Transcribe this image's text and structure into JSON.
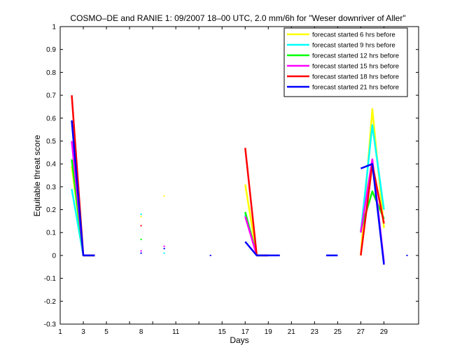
{
  "chart_data": {
    "type": "line",
    "title": "COSMO–DE and RANIE 1: 09/2007 18–00 UTC, 2.0 mm/6h for \"Weser downriver of Aller\"",
    "xlabel": "Days",
    "ylabel": "Equitable threat score",
    "xlim": [
      1,
      32
    ],
    "ylim": [
      -0.3,
      1
    ],
    "xticks": [
      1,
      3,
      5,
      7,
      9,
      11,
      13,
      15,
      17,
      19,
      21,
      23,
      25,
      27,
      29
    ],
    "xtick_labels": [
      "1",
      "3",
      "5",
      "8",
      "11",
      "15",
      "17",
      "19",
      "21",
      "23",
      "25",
      "27",
      "29"
    ],
    "xtick_label_positions": [
      1,
      3,
      5,
      8,
      11,
      15,
      17,
      19,
      21,
      23,
      25,
      27,
      29
    ],
    "yticks": [
      -0.3,
      -0.2,
      -0.1,
      0,
      0.1,
      0.2,
      0.3,
      0.4,
      0.5,
      0.6,
      0.7,
      0.8,
      0.9,
      1
    ],
    "ytick_labels": [
      "-0.3",
      "-0.2",
      "-0.1",
      "0",
      "0.1",
      "0.2",
      "0.3",
      "0.4",
      "0.5",
      "0.6",
      "0.7",
      "0.8",
      "0.9",
      "1"
    ],
    "legend_position": "top-right",
    "series": [
      {
        "name": "forecast started 6 hrs before",
        "color": "#ffff00",
        "points": [
          [
            2,
            0.39
          ],
          [
            3,
            0
          ],
          [
            4,
            0
          ],
          [
            null,
            null
          ],
          [
            8,
            0.17
          ],
          [
            null,
            null
          ],
          [
            10,
            0.26
          ],
          [
            null,
            null
          ],
          [
            17,
            0.31
          ],
          [
            18,
            0
          ],
          [
            19,
            0
          ],
          [
            null,
            null
          ],
          [
            27,
            0
          ],
          [
            28,
            0.64
          ],
          [
            29,
            0.12
          ]
        ]
      },
      {
        "name": "forecast started 9 hrs before",
        "color": "#00ffff",
        "points": [
          [
            2,
            0.29
          ],
          [
            3,
            0
          ],
          [
            4,
            0
          ],
          [
            null,
            null
          ],
          [
            8,
            0.18
          ],
          [
            null,
            null
          ],
          [
            10,
            0.01
          ],
          [
            null,
            null
          ],
          [
            17,
            0.18
          ],
          [
            18,
            0
          ],
          [
            19,
            0
          ],
          [
            null,
            null
          ],
          [
            27,
            0.1
          ],
          [
            28,
            0.57
          ],
          [
            29,
            0.2
          ]
        ]
      },
      {
        "name": "forecast started 12 hrs before",
        "color": "#00ff00",
        "points": [
          [
            2,
            0.42
          ],
          [
            3,
            0
          ],
          [
            4,
            0
          ],
          [
            null,
            null
          ],
          [
            8,
            0.07
          ],
          [
            null,
            null
          ],
          [
            17,
            0.19
          ],
          [
            18,
            0
          ],
          [
            19,
            0
          ],
          [
            null,
            null
          ],
          [
            27,
            0.11
          ],
          [
            28,
            0.28
          ],
          [
            29,
            0.16
          ]
        ]
      },
      {
        "name": "forecast started 15 hrs before",
        "color": "#ff00ff",
        "points": [
          [
            2,
            0.5
          ],
          [
            3,
            0
          ],
          [
            4,
            0
          ],
          [
            null,
            null
          ],
          [
            8,
            0.02
          ],
          [
            null,
            null
          ],
          [
            10,
            0.04
          ],
          [
            null,
            null
          ],
          [
            17,
            0.17
          ],
          [
            18,
            0
          ],
          [
            19,
            0
          ],
          [
            null,
            null
          ],
          [
            27,
            0.1
          ],
          [
            28,
            0.42
          ],
          [
            29,
            -0.03
          ]
        ]
      },
      {
        "name": "forecast started 18 hrs before",
        "color": "#ff0000",
        "points": [
          [
            2,
            0.7
          ],
          [
            3,
            0
          ],
          [
            4,
            0
          ],
          [
            null,
            null
          ],
          [
            8,
            0.13
          ],
          [
            null,
            null
          ],
          [
            17,
            0.47
          ],
          [
            18,
            0
          ],
          [
            19,
            0
          ],
          [
            null,
            null
          ],
          [
            27,
            0
          ],
          [
            28,
            0.4
          ],
          [
            29,
            0.14
          ]
        ]
      },
      {
        "name": "forecast started 21 hrs before",
        "color": "#0000ff",
        "points": [
          [
            2,
            0.59
          ],
          [
            3,
            0
          ],
          [
            4,
            0
          ],
          [
            null,
            null
          ],
          [
            8,
            0.01
          ],
          [
            null,
            null
          ],
          [
            10,
            0.03
          ],
          [
            null,
            null
          ],
          [
            14,
            0
          ],
          [
            null,
            null
          ],
          [
            17,
            0.06
          ],
          [
            18,
            0
          ],
          [
            19,
            0
          ],
          [
            20,
            0
          ],
          [
            null,
            null
          ],
          [
            24,
            0
          ],
          [
            25,
            0
          ],
          [
            null,
            null
          ],
          [
            27,
            0.38
          ],
          [
            28,
            0.4
          ],
          [
            29,
            -0.04
          ],
          [
            null,
            null
          ],
          [
            31,
            0
          ]
        ]
      }
    ]
  }
}
